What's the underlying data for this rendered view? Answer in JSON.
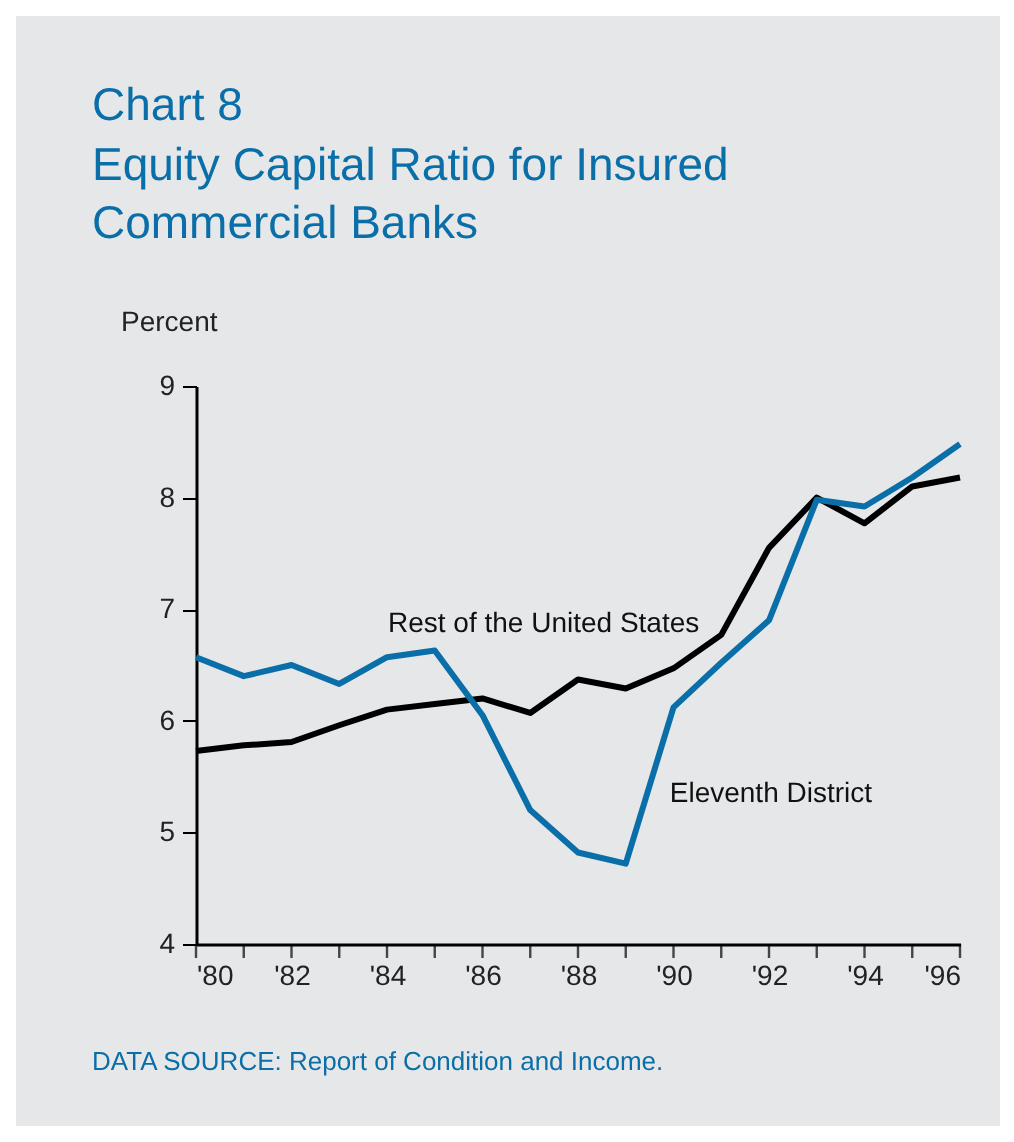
{
  "chart_data": {
    "type": "line",
    "title": "Chart 8",
    "subtitle": "Equity Capital Ratio for Insured Commercial Banks",
    "ylabel": "Percent",
    "x": [
      1980,
      1981,
      1982,
      1983,
      1984,
      1985,
      1986,
      1987,
      1988,
      1989,
      1990,
      1991,
      1992,
      1993,
      1994,
      1995,
      1996
    ],
    "series": [
      {
        "name": "Rest of the United States",
        "color": "#000000",
        "values": [
          5.73,
          5.78,
          5.81,
          5.96,
          6.1,
          6.15,
          6.2,
          6.07,
          6.37,
          6.29,
          6.47,
          6.77,
          7.55,
          8.0,
          7.77,
          8.1,
          8.18
        ]
      },
      {
        "name": "Eleventh District",
        "color": "#0a6fa8",
        "values": [
          6.57,
          6.4,
          6.5,
          6.33,
          6.57,
          6.63,
          6.05,
          5.2,
          4.82,
          4.72,
          6.12,
          6.52,
          6.9,
          7.98,
          7.92,
          8.18,
          8.48
        ]
      }
    ],
    "xlim": [
      1980,
      1996
    ],
    "xticks": [
      {
        "value": 1980,
        "label": "'80"
      },
      {
        "value": 1981,
        "label": null
      },
      {
        "value": 1982,
        "label": "'82"
      },
      {
        "value": 1983,
        "label": null
      },
      {
        "value": 1984,
        "label": "'84"
      },
      {
        "value": 1985,
        "label": null
      },
      {
        "value": 1986,
        "label": "'86"
      },
      {
        "value": 1987,
        "label": null
      },
      {
        "value": 1988,
        "label": "'88"
      },
      {
        "value": 1989,
        "label": null
      },
      {
        "value": 1990,
        "label": "'90"
      },
      {
        "value": 1991,
        "label": null
      },
      {
        "value": 1992,
        "label": "'92"
      },
      {
        "value": 1993,
        "label": null
      },
      {
        "value": 1994,
        "label": "'94"
      },
      {
        "value": 1995,
        "label": null
      },
      {
        "value": 1996,
        "label": "'96"
      }
    ],
    "ylim": [
      4,
      9
    ],
    "yticks": [
      4,
      5,
      6,
      7,
      8,
      9
    ],
    "grid": false,
    "legend": false,
    "annotations": [
      "DATA SOURCE:  Report of Condition and Income."
    ]
  }
}
